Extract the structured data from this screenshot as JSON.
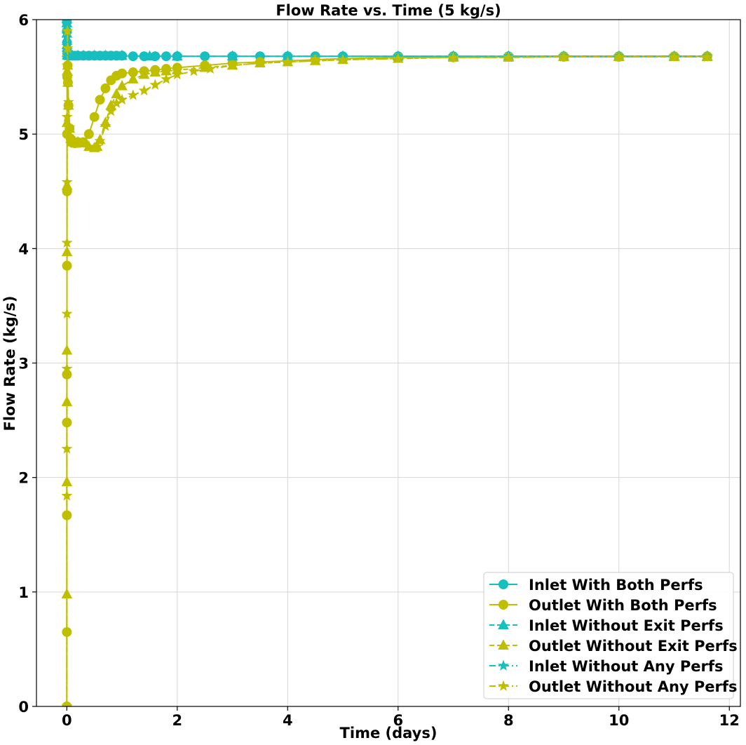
{
  "chart_data": {
    "type": "line",
    "title": "Flow Rate vs. Time (5 kg/s)",
    "xlabel": "Time (days)",
    "ylabel": "Flow Rate (kg/s)",
    "xlim": [
      -0.55,
      12.2
    ],
    "ylim": [
      0,
      6
    ],
    "xticks": [
      0,
      2,
      4,
      6,
      8,
      10,
      12
    ],
    "yticks": [
      0,
      1,
      2,
      3,
      4,
      5,
      6
    ],
    "grid": true,
    "legend_position": "lower-right",
    "colors": {
      "inlet": "#17bfbf",
      "outlet": "#bfbf00"
    },
    "series": [
      {
        "name": "Inlet With Both Perfs",
        "role": "inlet",
        "linestyle": "solid",
        "marker": "circle",
        "x": [
          0,
          0.001,
          0.003,
          0.006,
          0.01,
          0.02,
          0.05,
          0.1,
          0.15,
          0.2,
          0.3,
          0.4,
          0.5,
          0.6,
          0.7,
          0.8,
          0.9,
          1.0,
          1.2,
          1.4,
          1.6,
          1.8,
          2.0,
          2.5,
          3.0,
          3.5,
          4.0,
          4.5,
          5.0,
          6.0,
          7.0,
          8.0,
          9.0,
          10.0,
          11.0,
          11.6
        ],
        "y": [
          5.98,
          5.9,
          5.8,
          5.72,
          5.69,
          5.685,
          5.685,
          5.685,
          5.685,
          5.685,
          5.685,
          5.685,
          5.685,
          5.685,
          5.685,
          5.685,
          5.685,
          5.685,
          5.68,
          5.68,
          5.68,
          5.68,
          5.68,
          5.68,
          5.68,
          5.68,
          5.68,
          5.68,
          5.68,
          5.68,
          5.68,
          5.68,
          5.68,
          5.68,
          5.68,
          5.68
        ]
      },
      {
        "name": "Outlet With Both Perfs",
        "role": "outlet",
        "linestyle": "solid",
        "marker": "circle",
        "x": [
          0,
          0.0005,
          0.001,
          0.0015,
          0.002,
          0.003,
          0.004,
          0.005,
          0.007,
          0.01,
          0.015,
          0.02,
          0.03,
          0.05,
          0.07,
          0.1,
          0.15,
          0.2,
          0.3,
          0.4,
          0.5,
          0.6,
          0.7,
          0.8,
          0.9,
          1.0,
          1.2,
          1.4,
          1.6,
          1.8,
          2.0,
          2.5,
          3.0,
          3.5,
          4.0,
          4.5,
          5.0,
          6.0,
          7.0,
          8.0,
          9.0,
          10.0,
          11.0,
          11.6
        ],
        "y": [
          0,
          0.65,
          1.67,
          2.48,
          2.9,
          3.85,
          4.5,
          5.0,
          5.5,
          5.7,
          5.6,
          5.45,
          5.25,
          5.05,
          4.96,
          4.93,
          4.92,
          4.93,
          4.93,
          5.0,
          5.15,
          5.3,
          5.4,
          5.47,
          5.51,
          5.53,
          5.54,
          5.55,
          5.56,
          5.57,
          5.58,
          5.6,
          5.62,
          5.63,
          5.64,
          5.65,
          5.66,
          5.67,
          5.67,
          5.675,
          5.675,
          5.675,
          5.68,
          5.68
        ]
      },
      {
        "name": "Inlet Without Exit Perfs",
        "role": "inlet",
        "linestyle": "dashed",
        "marker": "triangle",
        "x": [
          0,
          0.001,
          0.003,
          0.006,
          0.01,
          0.02,
          0.05,
          0.1,
          0.2,
          0.3,
          0.5,
          0.7,
          1.0,
          1.5,
          2.0,
          3.0,
          4.0,
          5.0,
          6.0,
          7.0,
          8.0,
          9.0,
          10.0,
          11.0,
          11.6
        ],
        "y": [
          5.97,
          5.88,
          5.78,
          5.71,
          5.69,
          5.685,
          5.685,
          5.685,
          5.685,
          5.685,
          5.685,
          5.685,
          5.685,
          5.68,
          5.68,
          5.68,
          5.68,
          5.68,
          5.68,
          5.68,
          5.68,
          5.68,
          5.68,
          5.68,
          5.68
        ]
      },
      {
        "name": "Outlet Without Exit Perfs",
        "role": "outlet",
        "linestyle": "dashed",
        "marker": "triangle",
        "x": [
          0,
          0.0005,
          0.001,
          0.0015,
          0.002,
          0.003,
          0.004,
          0.005,
          0.007,
          0.01,
          0.015,
          0.02,
          0.03,
          0.05,
          0.07,
          0.1,
          0.15,
          0.2,
          0.3,
          0.4,
          0.5,
          0.55,
          0.6,
          0.7,
          0.8,
          0.9,
          1.0,
          1.2,
          1.4,
          1.6,
          1.8,
          2.0,
          2.5,
          3.0,
          3.5,
          4.0,
          4.5,
          5.0,
          6.0,
          7.0,
          8.0,
          9.0,
          10.0,
          11.0,
          11.6
        ],
        "y": [
          0,
          0.98,
          1.96,
          2.66,
          3.11,
          3.97,
          4.55,
          5.1,
          5.55,
          5.72,
          5.6,
          5.45,
          5.25,
          5.05,
          4.96,
          4.93,
          4.92,
          4.93,
          4.92,
          4.89,
          4.88,
          4.89,
          4.95,
          5.1,
          5.25,
          5.35,
          5.42,
          5.48,
          5.52,
          5.54,
          5.55,
          5.56,
          5.58,
          5.6,
          5.62,
          5.63,
          5.64,
          5.65,
          5.66,
          5.67,
          5.67,
          5.675,
          5.675,
          5.675,
          5.675
        ]
      },
      {
        "name": "Inlet Without Any Perfs",
        "role": "inlet",
        "linestyle": "dashdot",
        "marker": "star",
        "x": [
          0,
          0.001,
          0.003,
          0.006,
          0.01,
          0.02,
          0.05,
          0.1,
          0.2,
          0.3,
          0.5,
          0.7,
          1.0,
          1.5,
          2.0,
          3.0,
          4.0,
          5.0,
          6.0,
          7.0,
          8.0,
          9.0,
          10.0,
          11.0,
          11.6
        ],
        "y": [
          5.96,
          5.87,
          5.77,
          5.71,
          5.69,
          5.685,
          5.685,
          5.685,
          5.685,
          5.685,
          5.685,
          5.685,
          5.685,
          5.68,
          5.68,
          5.68,
          5.68,
          5.68,
          5.68,
          5.68,
          5.68,
          5.68,
          5.68,
          5.68,
          5.68
        ]
      },
      {
        "name": "Outlet Without Any Perfs",
        "role": "outlet",
        "linestyle": "dashdot",
        "marker": "star",
        "x": [
          0,
          0.0005,
          0.001,
          0.0015,
          0.002,
          0.003,
          0.004,
          0.005,
          0.007,
          0.01,
          0.015,
          0.02,
          0.03,
          0.05,
          0.07,
          0.1,
          0.15,
          0.2,
          0.3,
          0.4,
          0.5,
          0.55,
          0.6,
          0.7,
          0.8,
          0.9,
          1.0,
          1.2,
          1.4,
          1.6,
          1.8,
          2.0,
          2.3,
          2.6,
          3.0,
          3.5,
          4.0,
          4.5,
          5.0,
          6.0,
          7.0,
          8.0,
          9.0,
          10.0,
          11.0,
          11.6
        ],
        "y": [
          0,
          1.84,
          2.25,
          2.95,
          3.43,
          4.05,
          4.58,
          5.15,
          5.6,
          5.9,
          5.75,
          5.5,
          5.28,
          5.06,
          4.96,
          4.93,
          4.92,
          4.93,
          4.92,
          4.89,
          4.88,
          4.89,
          4.94,
          5.07,
          5.2,
          5.27,
          5.3,
          5.34,
          5.38,
          5.43,
          5.48,
          5.52,
          5.55,
          5.57,
          5.6,
          5.62,
          5.63,
          5.64,
          5.65,
          5.66,
          5.67,
          5.67,
          5.675,
          5.675,
          5.675,
          5.675
        ]
      }
    ]
  }
}
